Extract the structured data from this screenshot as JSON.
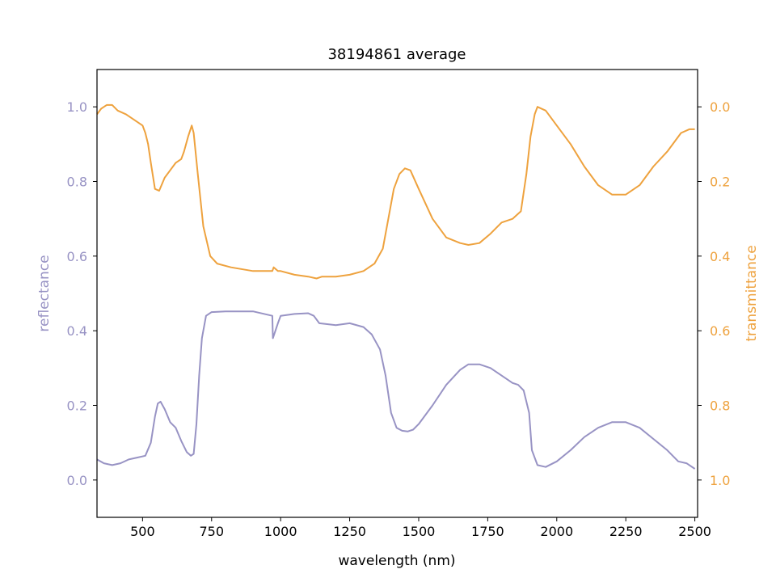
{
  "chart_data": {
    "type": "line",
    "title": "38194861 average",
    "xlabel": "wavelength (nm)",
    "ylabel_left": "reflectance",
    "ylabel_right": "transmittance",
    "xlim": [
      335,
      2510
    ],
    "ylim_left": [
      -0.1,
      1.1
    ],
    "ylim_right": [
      1.1,
      -0.1
    ],
    "x_ticks": [
      500,
      750,
      1000,
      1250,
      1500,
      1750,
      2000,
      2250,
      2500
    ],
    "y_ticks_left": [
      0.0,
      0.2,
      0.4,
      0.6,
      0.8,
      1.0
    ],
    "y_ticks_right": [
      0.0,
      0.2,
      0.4,
      0.6,
      0.8,
      1.0
    ],
    "grid": false,
    "colors": {
      "reflectance": "#9893c4",
      "transmittance": "#eea23e"
    },
    "series": [
      {
        "axis": "left",
        "color": "#9893c4",
        "x": [
          335,
          360,
          390,
          420,
          450,
          480,
          510,
          530,
          545,
          555,
          565,
          580,
          600,
          620,
          640,
          660,
          675,
          685,
          695,
          705,
          715,
          730,
          750,
          800,
          900,
          970,
          972,
          990,
          1000,
          1050,
          1100,
          1120,
          1140,
          1200,
          1250,
          1300,
          1330,
          1360,
          1380,
          1400,
          1420,
          1440,
          1460,
          1480,
          1500,
          1550,
          1600,
          1650,
          1680,
          1720,
          1760,
          1800,
          1840,
          1860,
          1880,
          1900,
          1910,
          1930,
          1960,
          2000,
          2050,
          2100,
          2150,
          2200,
          2250,
          2300,
          2350,
          2400,
          2440,
          2470,
          2500
        ],
        "values": [
          0.055,
          0.045,
          0.04,
          0.045,
          0.055,
          0.06,
          0.065,
          0.1,
          0.17,
          0.205,
          0.21,
          0.19,
          0.155,
          0.14,
          0.105,
          0.075,
          0.065,
          0.07,
          0.15,
          0.28,
          0.38,
          0.44,
          0.45,
          0.452,
          0.452,
          0.44,
          0.38,
          0.42,
          0.44,
          0.445,
          0.447,
          0.44,
          0.42,
          0.415,
          0.42,
          0.41,
          0.39,
          0.35,
          0.28,
          0.18,
          0.14,
          0.132,
          0.13,
          0.135,
          0.15,
          0.2,
          0.255,
          0.295,
          0.31,
          0.31,
          0.3,
          0.28,
          0.26,
          0.255,
          0.24,
          0.18,
          0.08,
          0.04,
          0.035,
          0.05,
          0.08,
          0.115,
          0.14,
          0.155,
          0.155,
          0.14,
          0.11,
          0.08,
          0.05,
          0.045,
          0.03
        ]
      },
      {
        "axis": "right",
        "color": "#eea23e",
        "x": [
          335,
          350,
          370,
          390,
          410,
          440,
          470,
          500,
          510,
          520,
          530,
          545,
          560,
          580,
          600,
          620,
          640,
          650,
          665,
          678,
          685,
          700,
          720,
          745,
          770,
          820,
          900,
          970,
          975,
          990,
          1000,
          1050,
          1100,
          1130,
          1150,
          1200,
          1250,
          1300,
          1340,
          1370,
          1390,
          1410,
          1430,
          1450,
          1470,
          1500,
          1550,
          1600,
          1650,
          1680,
          1720,
          1760,
          1800,
          1840,
          1870,
          1890,
          1905,
          1920,
          1930,
          1960,
          2000,
          2050,
          2100,
          2150,
          2200,
          2250,
          2300,
          2350,
          2400,
          2450,
          2480,
          2500
        ],
        "values": [
          0.02,
          0.005,
          -0.005,
          -0.005,
          0.01,
          0.02,
          0.035,
          0.05,
          0.07,
          0.1,
          0.15,
          0.22,
          0.225,
          0.19,
          0.17,
          0.15,
          0.14,
          0.12,
          0.08,
          0.05,
          0.07,
          0.18,
          0.32,
          0.4,
          0.42,
          0.43,
          0.44,
          0.44,
          0.43,
          0.44,
          0.44,
          0.45,
          0.455,
          0.46,
          0.455,
          0.455,
          0.45,
          0.44,
          0.42,
          0.38,
          0.3,
          0.22,
          0.18,
          0.165,
          0.17,
          0.22,
          0.3,
          0.35,
          0.365,
          0.37,
          0.365,
          0.34,
          0.31,
          0.3,
          0.28,
          0.18,
          0.08,
          0.02,
          0.0,
          0.01,
          0.05,
          0.1,
          0.16,
          0.21,
          0.235,
          0.235,
          0.21,
          0.16,
          0.12,
          0.07,
          0.06,
          0.06
        ]
      }
    ]
  }
}
